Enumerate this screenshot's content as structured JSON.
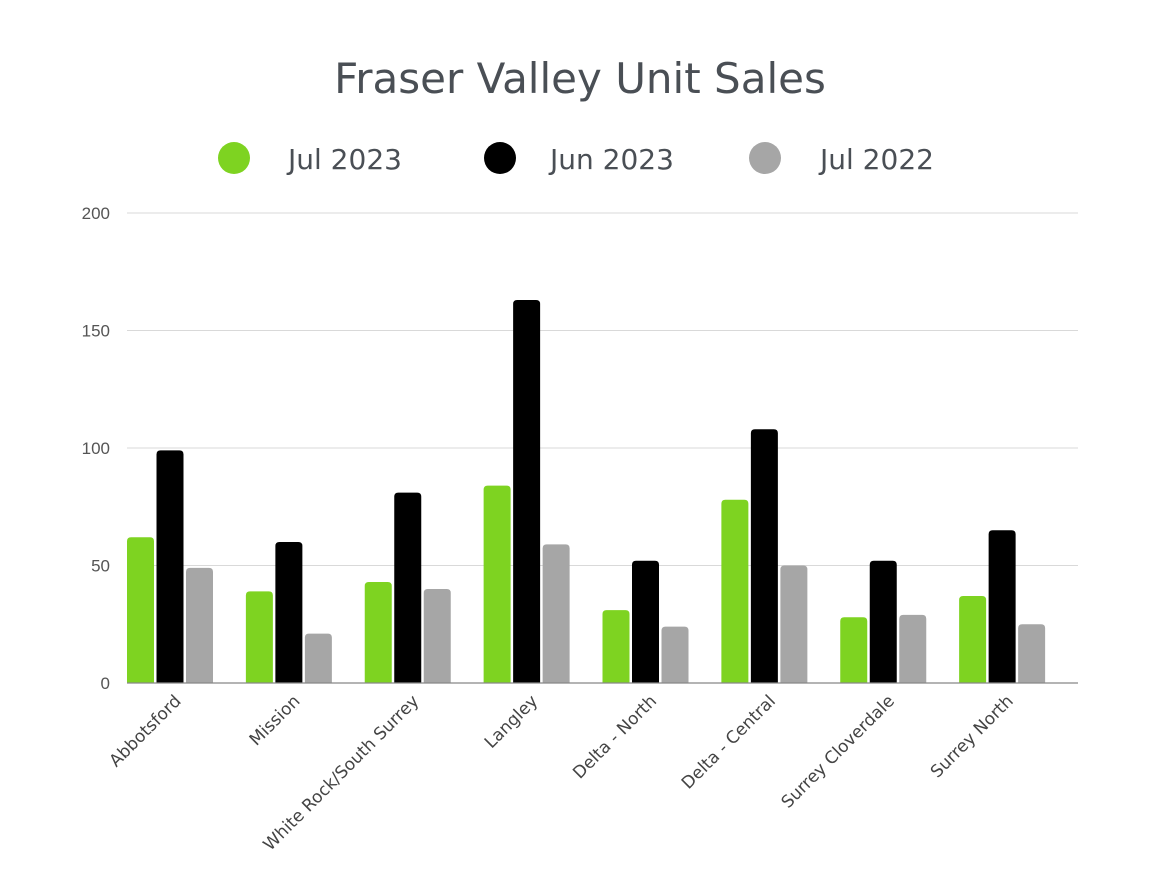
{
  "chart_data": {
    "type": "bar",
    "title": "Fraser Valley Unit Sales",
    "categories": [
      "Abbotsford",
      "Mission",
      "White Rock/South Surrey",
      "Langley",
      "Delta - North",
      "Delta - Central",
      "Surrey Cloverdale",
      "Surrey North"
    ],
    "series": [
      {
        "name": "Jul 2023",
        "color": "#7ed321",
        "values": [
          62,
          39,
          43,
          84,
          31,
          78,
          28,
          37
        ]
      },
      {
        "name": "Jun 2023",
        "color": "#000000",
        "values": [
          99,
          60,
          81,
          163,
          52,
          108,
          52,
          65
        ]
      },
      {
        "name": "Jul 2022",
        "color": "#a6a6a6",
        "values": [
          49,
          21,
          40,
          59,
          24,
          50,
          29,
          25
        ]
      }
    ],
    "ylim": [
      0,
      200
    ],
    "yticks": [
      0,
      50,
      100,
      150,
      200
    ],
    "grid": true,
    "legend": "top-center",
    "xlabel": "",
    "ylabel": ""
  }
}
